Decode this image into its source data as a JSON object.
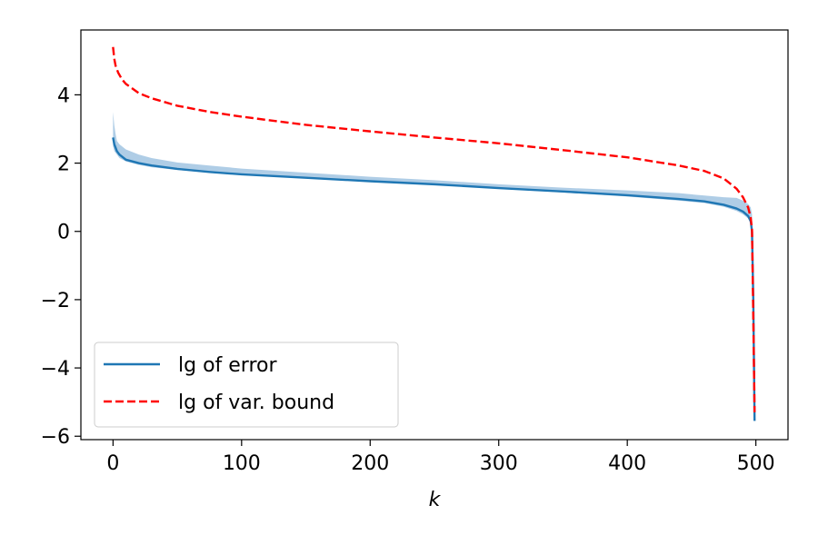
{
  "chart_data": {
    "type": "line",
    "title": "",
    "xlabel": "k",
    "ylabel": "",
    "xlim": [
      -25,
      525
    ],
    "ylim": [
      -6.1,
      5.9
    ],
    "grid": false,
    "legend_position": "bottom-left",
    "x_ticks": [
      0,
      100,
      200,
      300,
      400,
      500
    ],
    "x_tick_labels": [
      "0",
      "100",
      "200",
      "300",
      "400",
      "500"
    ],
    "y_ticks": [
      -6,
      -4,
      -2,
      0,
      2,
      4
    ],
    "y_tick_labels": [
      "−6",
      "−4",
      "−2",
      "0",
      "2",
      "4"
    ],
    "series": [
      {
        "name": "lg of error",
        "style": "solid",
        "color": "#1f77b4",
        "x": [
          0,
          1,
          2,
          3,
          5,
          10,
          20,
          30,
          50,
          75,
          100,
          150,
          200,
          250,
          300,
          350,
          400,
          440,
          460,
          475,
          485,
          490,
          494,
          496,
          497,
          498,
          499
        ],
        "y": [
          2.75,
          2.55,
          2.45,
          2.35,
          2.25,
          2.1,
          2.0,
          1.93,
          1.83,
          1.74,
          1.67,
          1.57,
          1.47,
          1.38,
          1.27,
          1.17,
          1.06,
          0.95,
          0.88,
          0.78,
          0.67,
          0.58,
          0.45,
          0.3,
          0.0,
          -2.0,
          -5.55
        ]
      },
      {
        "name": "lg of var. bound",
        "style": "dashed",
        "color": "#ff0000",
        "x": [
          0,
          1,
          2,
          4,
          7,
          10,
          20,
          30,
          50,
          75,
          100,
          150,
          200,
          250,
          300,
          350,
          400,
          440,
          460,
          475,
          485,
          490,
          494,
          496,
          497,
          498,
          499
        ],
        "y": [
          5.4,
          5.05,
          4.85,
          4.65,
          4.45,
          4.32,
          4.05,
          3.9,
          3.68,
          3.5,
          3.36,
          3.12,
          2.93,
          2.75,
          2.58,
          2.38,
          2.17,
          1.93,
          1.77,
          1.55,
          1.25,
          1.0,
          0.7,
          0.4,
          0.05,
          -2.5,
          -5.3
        ]
      }
    ],
    "band": {
      "color": "#a6c8e3",
      "x": [
        0,
        1,
        2,
        3,
        5,
        10,
        20,
        30,
        50,
        75,
        100,
        150,
        200,
        250,
        300,
        350,
        400,
        440,
        460,
        475,
        485,
        490,
        494,
        496,
        497,
        498,
        499
      ],
      "lower": [
        2.5,
        2.35,
        2.3,
        2.25,
        2.15,
        2.05,
        1.95,
        1.88,
        1.8,
        1.72,
        1.65,
        1.55,
        1.45,
        1.36,
        1.25,
        1.14,
        1.02,
        0.9,
        0.83,
        0.72,
        0.6,
        0.5,
        0.38,
        0.2,
        -0.05,
        -2.2,
        -5.55
      ],
      "upper": [
        3.5,
        3.1,
        2.85,
        2.65,
        2.55,
        2.4,
        2.25,
        2.15,
        2.02,
        1.93,
        1.84,
        1.72,
        1.6,
        1.5,
        1.38,
        1.28,
        1.2,
        1.12,
        1.05,
        1.0,
        0.98,
        0.9,
        0.8,
        0.7,
        0.5,
        -1.5,
        -5.3
      ]
    }
  }
}
